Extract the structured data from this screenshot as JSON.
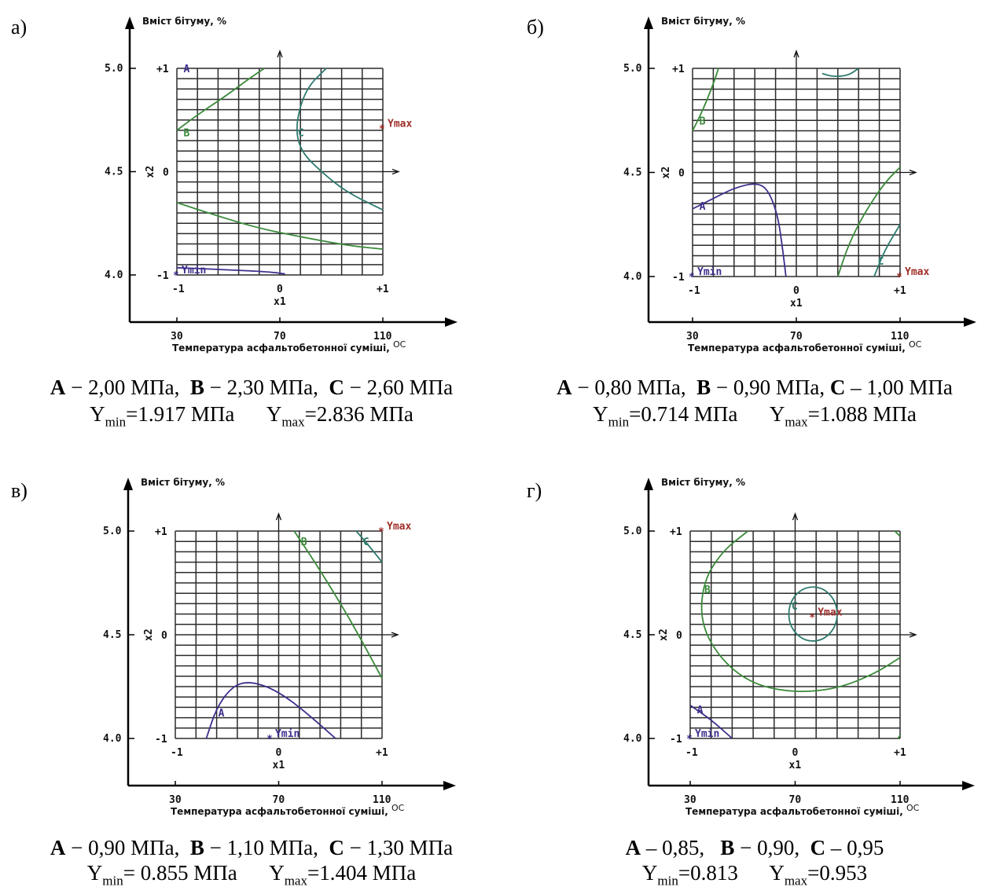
{
  "common": {
    "ylabel": "Вміст бітуму, %",
    "xlabel": "Температура асфальтобетонної суміші, ",
    "xlabel_unit": "OC",
    "x_label": "x1",
    "z_label": "x2",
    "y_ticks": [
      "4.0",
      "4.5",
      "5.0"
    ],
    "x_ticks": [
      "30",
      "70",
      "110"
    ],
    "code_plus": "+1",
    "code_minus": "-1",
    "code_zero": "0",
    "colors": {
      "A": "#3d2f8c",
      "B": "#3a8a3a",
      "C": "#2e7a6e",
      "Ymax": "#a0302a",
      "Ymin": "#3d2f8c",
      "grid": "#2b2b2b"
    }
  },
  "chart_data": [
    {
      "tag": "а)",
      "type": "contour",
      "x_axis": {
        "ticks": [
          30,
          70,
          110
        ],
        "coded": [
          -1,
          0,
          1
        ]
      },
      "y_axis": {
        "ticks": [
          4.0,
          4.5,
          5.0
        ],
        "coded": [
          -1,
          0,
          1
        ]
      },
      "contours": [
        {
          "name": "A",
          "value": "2,00 МПа",
          "points": [
            [
              -1,
              -0.93
            ],
            [
              -0.5,
              -0.95
            ],
            [
              -0.1,
              -0.97
            ],
            [
              0.05,
              -0.99
            ]
          ]
        },
        {
          "name": "B",
          "value": "2,30 МПа",
          "points": [
            [
              -1,
              0.4
            ],
            [
              -0.8,
              0.55
            ],
            [
              -0.5,
              0.75
            ],
            [
              -0.3,
              0.9
            ],
            [
              -0.15,
              1.0
            ]
          ]
        },
        {
          "name": "B",
          "value": "2,30 МПа",
          "points": [
            [
              -1,
              -0.3
            ],
            [
              -0.6,
              -0.43
            ],
            [
              -0.2,
              -0.55
            ],
            [
              0.3,
              -0.65
            ],
            [
              0.7,
              -0.72
            ],
            [
              1,
              -0.75
            ]
          ]
        },
        {
          "name": "C",
          "value": "2,60 МПа",
          "points": [
            [
              0.45,
              1.0
            ],
            [
              0.25,
              0.8
            ],
            [
              0.15,
              0.45
            ],
            [
              0.2,
              0.2
            ],
            [
              0.4,
              0.0
            ],
            [
              0.65,
              -0.2
            ],
            [
              1,
              -0.37
            ]
          ]
        }
      ],
      "labels": [
        {
          "text": "A",
          "x": -0.95,
          "y": 1.0,
          "series": "A"
        },
        {
          "text": "B",
          "x": -0.95,
          "y": 0.38,
          "series": "B"
        },
        {
          "text": "C",
          "x": 0.16,
          "y": 0.38,
          "series": "C"
        }
      ],
      "markers": [
        {
          "text": "Ymax",
          "x": 1.0,
          "y": 0.42,
          "series": "Ymax"
        },
        {
          "text": "Ymin",
          "x": -1.0,
          "y": -1.0,
          "series": "Ymin"
        }
      ],
      "caption": {
        "A": "2,00 МПа",
        "B": "2,30 МПа",
        "C": "2,60 МПа",
        "ymin": "=1.917 МПа",
        "ymax": "=2.836 МПа"
      }
    },
    {
      "tag": "б)",
      "type": "contour",
      "x_axis": {
        "ticks": [
          30,
          70,
          110
        ],
        "coded": [
          -1,
          0,
          1
        ]
      },
      "y_axis": {
        "ticks": [
          4.0,
          4.5,
          5.0
        ],
        "coded": [
          -1,
          0,
          1
        ]
      },
      "contours": [
        {
          "name": "A",
          "value": "0,80 МПа",
          "points": [
            [
              -1,
              -0.35
            ],
            [
              -0.8,
              -0.25
            ],
            [
              -0.6,
              -0.15
            ],
            [
              -0.4,
              -0.1
            ],
            [
              -0.28,
              -0.15
            ],
            [
              -0.18,
              -0.4
            ],
            [
              -0.13,
              -0.75
            ],
            [
              -0.1,
              -1.0
            ]
          ]
        },
        {
          "name": "B",
          "value": "0,90 МПа",
          "points": [
            [
              -1,
              0.4
            ],
            [
              -0.9,
              0.6
            ],
            [
              -0.8,
              0.85
            ],
            [
              -0.75,
              1.0
            ]
          ]
        },
        {
          "name": "B",
          "value": "0,90 МПа",
          "points": [
            [
              0.4,
              -1.0
            ],
            [
              0.5,
              -0.7
            ],
            [
              0.65,
              -0.4
            ],
            [
              0.85,
              -0.1
            ],
            [
              1.0,
              0.05
            ]
          ]
        },
        {
          "name": "C",
          "value": "1,00 МПа",
          "points": [
            [
              0.75,
              -1.0
            ],
            [
              0.85,
              -0.75
            ],
            [
              1.0,
              -0.5
            ]
          ]
        },
        {
          "name": "C",
          "value": "1,00 МПа",
          "points": [
            [
              0.25,
              0.95
            ],
            [
              0.35,
              0.92
            ],
            [
              0.5,
              0.93
            ],
            [
              0.6,
              1.0
            ]
          ]
        }
      ],
      "labels": [
        {
          "text": "A",
          "x": -0.95,
          "y": -0.32,
          "series": "A"
        },
        {
          "text": "B",
          "x": -0.95,
          "y": 0.5,
          "series": "B"
        },
        {
          "text": "C",
          "x": 0.77,
          "y": -0.85,
          "series": "C"
        }
      ],
      "markers": [
        {
          "text": "Ymax",
          "x": 1.0,
          "y": -1.0,
          "series": "Ymax"
        },
        {
          "text": "Ymin",
          "x": -1.0,
          "y": -1.0,
          "series": "Ymin"
        }
      ],
      "caption": {
        "A": "0,80 МПа",
        "B": "0,90 МПа",
        "C": "1,00 МПа",
        "ymin": "=0.714 МПа",
        "ymax": "=1.088 МПа"
      }
    },
    {
      "tag": "в)",
      "type": "contour",
      "x_axis": {
        "ticks": [
          30,
          70,
          110
        ],
        "coded": [
          -1,
          0,
          1
        ]
      },
      "y_axis": {
        "ticks": [
          4.0,
          4.5,
          5.0
        ],
        "coded": [
          -1,
          0,
          1
        ]
      },
      "contours": [
        {
          "name": "A",
          "value": "0,90 МПа",
          "points": [
            [
              -0.7,
              -1.0
            ],
            [
              -0.6,
              -0.7
            ],
            [
              -0.45,
              -0.5
            ],
            [
              -0.3,
              -0.45
            ],
            [
              -0.1,
              -0.5
            ],
            [
              0.1,
              -0.62
            ],
            [
              0.3,
              -0.78
            ],
            [
              0.55,
              -1.0
            ]
          ]
        },
        {
          "name": "B",
          "value": "1,10 МПа",
          "points": [
            [
              0.15,
              1.0
            ],
            [
              0.35,
              0.7
            ],
            [
              0.6,
              0.3
            ],
            [
              0.8,
              -0.05
            ],
            [
              1.0,
              -0.42
            ]
          ]
        },
        {
          "name": "C",
          "value": "1,30 МПа",
          "points": [
            [
              0.75,
              1.0
            ],
            [
              0.88,
              0.85
            ],
            [
              1.0,
              0.7
            ]
          ]
        }
      ],
      "labels": [
        {
          "text": "A",
          "x": -0.6,
          "y": -0.75,
          "series": "A"
        },
        {
          "text": "B",
          "x": 0.2,
          "y": 0.9,
          "series": "B"
        },
        {
          "text": "C",
          "x": 0.8,
          "y": 0.9,
          "series": "C"
        }
      ],
      "markers": [
        {
          "text": "Ymax",
          "x": 1.0,
          "y": 1.0,
          "series": "Ymax"
        },
        {
          "text": "Ymin",
          "x": -0.08,
          "y": -1.0,
          "series": "Ymin"
        }
      ],
      "caption": {
        "A": "0,90 МПа",
        "B": "1,10 МПа",
        "C": "1,30 МПа",
        "ymin": "= 0.855 МПа",
        "ymax": "=1.404 МПа"
      }
    },
    {
      "tag": "г)",
      "type": "contour",
      "x_axis": {
        "ticks": [
          30,
          70,
          110
        ],
        "coded": [
          -1,
          0,
          1
        ]
      },
      "y_axis": {
        "ticks": [
          4.0,
          4.5,
          5.0
        ],
        "coded": [
          -1,
          0,
          1
        ]
      },
      "contours": [
        {
          "name": "A",
          "value": "0,85",
          "points": [
            [
              -1,
              -0.68
            ],
            [
              -0.8,
              -0.82
            ],
            [
              -0.6,
              -1.0
            ]
          ]
        },
        {
          "name": "B",
          "value": "0,90",
          "points": [
            [
              -0.45,
              1.0
            ],
            [
              -0.7,
              0.8
            ],
            [
              -0.88,
              0.5
            ],
            [
              -0.9,
              0.1
            ],
            [
              -0.7,
              -0.25
            ],
            [
              -0.4,
              -0.48
            ],
            [
              0.0,
              -0.56
            ],
            [
              0.4,
              -0.52
            ],
            [
              0.75,
              -0.38
            ],
            [
              1.0,
              -0.22
            ]
          ]
        },
        {
          "name": "B",
          "value": "0,90",
          "points": [
            [
              0.95,
              1.0
            ],
            [
              1.0,
              0.95
            ]
          ]
        },
        {
          "name": "B",
          "value": "0,90",
          "points": [
            [
              0.98,
              -1.0
            ],
            [
              1.0,
              -0.97
            ]
          ]
        },
        {
          "name": "C",
          "value": "0,95",
          "circle": {
            "cx": 0.17,
            "cy": 0.2,
            "rx": 0.23,
            "ry": 0.26
          }
        }
      ],
      "labels": [
        {
          "text": "A",
          "x": -0.95,
          "y": -0.72,
          "series": "A"
        },
        {
          "text": "B",
          "x": -0.88,
          "y": 0.44,
          "series": "B"
        },
        {
          "text": "C",
          "x": -0.05,
          "y": 0.28,
          "series": "C"
        }
      ],
      "markers": [
        {
          "text": "Ymax",
          "x": 0.17,
          "y": 0.17,
          "series": "Ymax"
        },
        {
          "text": "Ymin",
          "x": -1.0,
          "y": -1.0,
          "series": "Ymin"
        }
      ],
      "caption": {
        "A": "0,85",
        "B": "0,90",
        "C": "0,95",
        "ymin": "=0.813",
        "ymax": "=0.953"
      }
    }
  ]
}
